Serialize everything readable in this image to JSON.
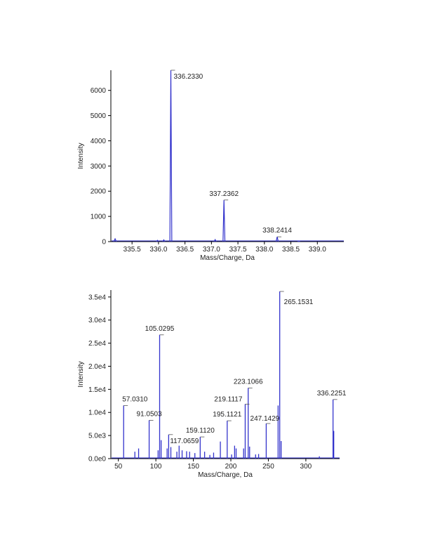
{
  "colors": {
    "spectrum": "#3333cc",
    "axis": "#000000",
    "leader": "#555555"
  },
  "chart_data": [
    {
      "type": "line",
      "title": "",
      "xlabel": "Mass/Charge, Da",
      "ylabel": "Intensity",
      "xlim": [
        335.1,
        339.5
      ],
      "ylim": [
        0,
        6800
      ],
      "xticks": [
        335.5,
        336.0,
        336.5,
        337.0,
        337.5,
        338.0,
        338.5,
        339.0
      ],
      "xtick_labels": [
        "335.5",
        "336.0",
        "336.5",
        "337.0",
        "337.5",
        "338.0",
        "338.5",
        "339.0"
      ],
      "yticks": [
        0,
        1000,
        2000,
        3000,
        4000,
        5000,
        6000
      ],
      "ytick_labels": [
        "0",
        "1000",
        "2000",
        "3000",
        "4000",
        "5000",
        "6000"
      ],
      "grid": false,
      "peaks": [
        {
          "x": 335.18,
          "y": 110,
          "w": 0.025
        },
        {
          "x": 335.98,
          "y": 50,
          "w": 0.02
        },
        {
          "x": 336.1,
          "y": 70,
          "w": 0.02
        },
        {
          "x": 336.233,
          "y": 6800,
          "w": 0.018
        },
        {
          "x": 337.07,
          "y": 80,
          "w": 0.02
        },
        {
          "x": 337.2362,
          "y": 1650,
          "w": 0.018
        },
        {
          "x": 338.2414,
          "y": 190,
          "w": 0.02
        },
        {
          "x": 338.65,
          "y": 25,
          "w": 0.02
        }
      ],
      "annotations": [
        {
          "x": 336.233,
          "y": 6800,
          "label": "336.2330"
        },
        {
          "x": 337.2362,
          "y": 1650,
          "label": "337.2362"
        },
        {
          "x": 338.2414,
          "y": 190,
          "label": "338.2414"
        }
      ]
    },
    {
      "type": "bar",
      "title": "",
      "xlabel": "Mass/Charge, Da",
      "ylabel": "Intensity",
      "xlim": [
        40,
        345
      ],
      "ylim": [
        0,
        36500
      ],
      "xticks": [
        50,
        100,
        150,
        200,
        250,
        300
      ],
      "xtick_labels": [
        "50",
        "100",
        "150",
        "200",
        "250",
        "300"
      ],
      "yticks": [
        0,
        5000,
        10000,
        15000,
        20000,
        25000,
        30000,
        35000
      ],
      "ytick_labels": [
        "0.0e0",
        "5.0e3",
        "1.0e4",
        "1.5e4",
        "2.0e4",
        "2.5e4",
        "3.0e4",
        "3.5e4"
      ],
      "grid": false,
      "peaks": [
        {
          "x": 57.031,
          "y": 11500
        },
        {
          "x": 72,
          "y": 1500
        },
        {
          "x": 77,
          "y": 2200
        },
        {
          "x": 91.0503,
          "y": 8300
        },
        {
          "x": 103,
          "y": 1800
        },
        {
          "x": 105.0295,
          "y": 26800
        },
        {
          "x": 107,
          "y": 4000
        },
        {
          "x": 115,
          "y": 2200
        },
        {
          "x": 117.0659,
          "y": 5200
        },
        {
          "x": 120,
          "y": 2500
        },
        {
          "x": 128,
          "y": 1500
        },
        {
          "x": 131,
          "y": 2800
        },
        {
          "x": 135,
          "y": 1800
        },
        {
          "x": 141,
          "y": 1600
        },
        {
          "x": 145,
          "y": 1500
        },
        {
          "x": 152,
          "y": 1200
        },
        {
          "x": 159.112,
          "y": 4700
        },
        {
          "x": 165,
          "y": 1500
        },
        {
          "x": 172,
          "y": 800
        },
        {
          "x": 177,
          "y": 1300
        },
        {
          "x": 186,
          "y": 3700
        },
        {
          "x": 195.1121,
          "y": 8200
        },
        {
          "x": 201,
          "y": 900
        },
        {
          "x": 205,
          "y": 2800
        },
        {
          "x": 207,
          "y": 2200
        },
        {
          "x": 217,
          "y": 2200
        },
        {
          "x": 219.1117,
          "y": 11800
        },
        {
          "x": 223.1066,
          "y": 15300
        },
        {
          "x": 225,
          "y": 2600
        },
        {
          "x": 233,
          "y": 900
        },
        {
          "x": 237,
          "y": 1000
        },
        {
          "x": 247.1429,
          "y": 7600
        },
        {
          "x": 263,
          "y": 11500
        },
        {
          "x": 265.1531,
          "y": 36200
        },
        {
          "x": 267,
          "y": 3800
        },
        {
          "x": 318,
          "y": 500
        },
        {
          "x": 336.2251,
          "y": 12800
        },
        {
          "x": 337.2,
          "y": 6000
        }
      ],
      "annotations": [
        {
          "x": 57.031,
          "y": 11500,
          "label": "57.0310"
        },
        {
          "x": 91.0503,
          "y": 8300,
          "label": "91.0503"
        },
        {
          "x": 105.0295,
          "y": 26800,
          "label": "105.0295"
        },
        {
          "x": 117.0659,
          "y": 5200,
          "label": "117.0659"
        },
        {
          "x": 159.112,
          "y": 4700,
          "label": "159.1120"
        },
        {
          "x": 195.1121,
          "y": 8200,
          "label": "195.1121"
        },
        {
          "x": 219.1117,
          "y": 11800,
          "label": "219.1117"
        },
        {
          "x": 223.1066,
          "y": 15300,
          "label": "223.1066"
        },
        {
          "x": 247.1429,
          "y": 7600,
          "label": "247.1429"
        },
        {
          "x": 265.1531,
          "y": 36200,
          "label": "265.1531"
        },
        {
          "x": 336.2251,
          "y": 12800,
          "label": "336.2251"
        }
      ]
    }
  ]
}
